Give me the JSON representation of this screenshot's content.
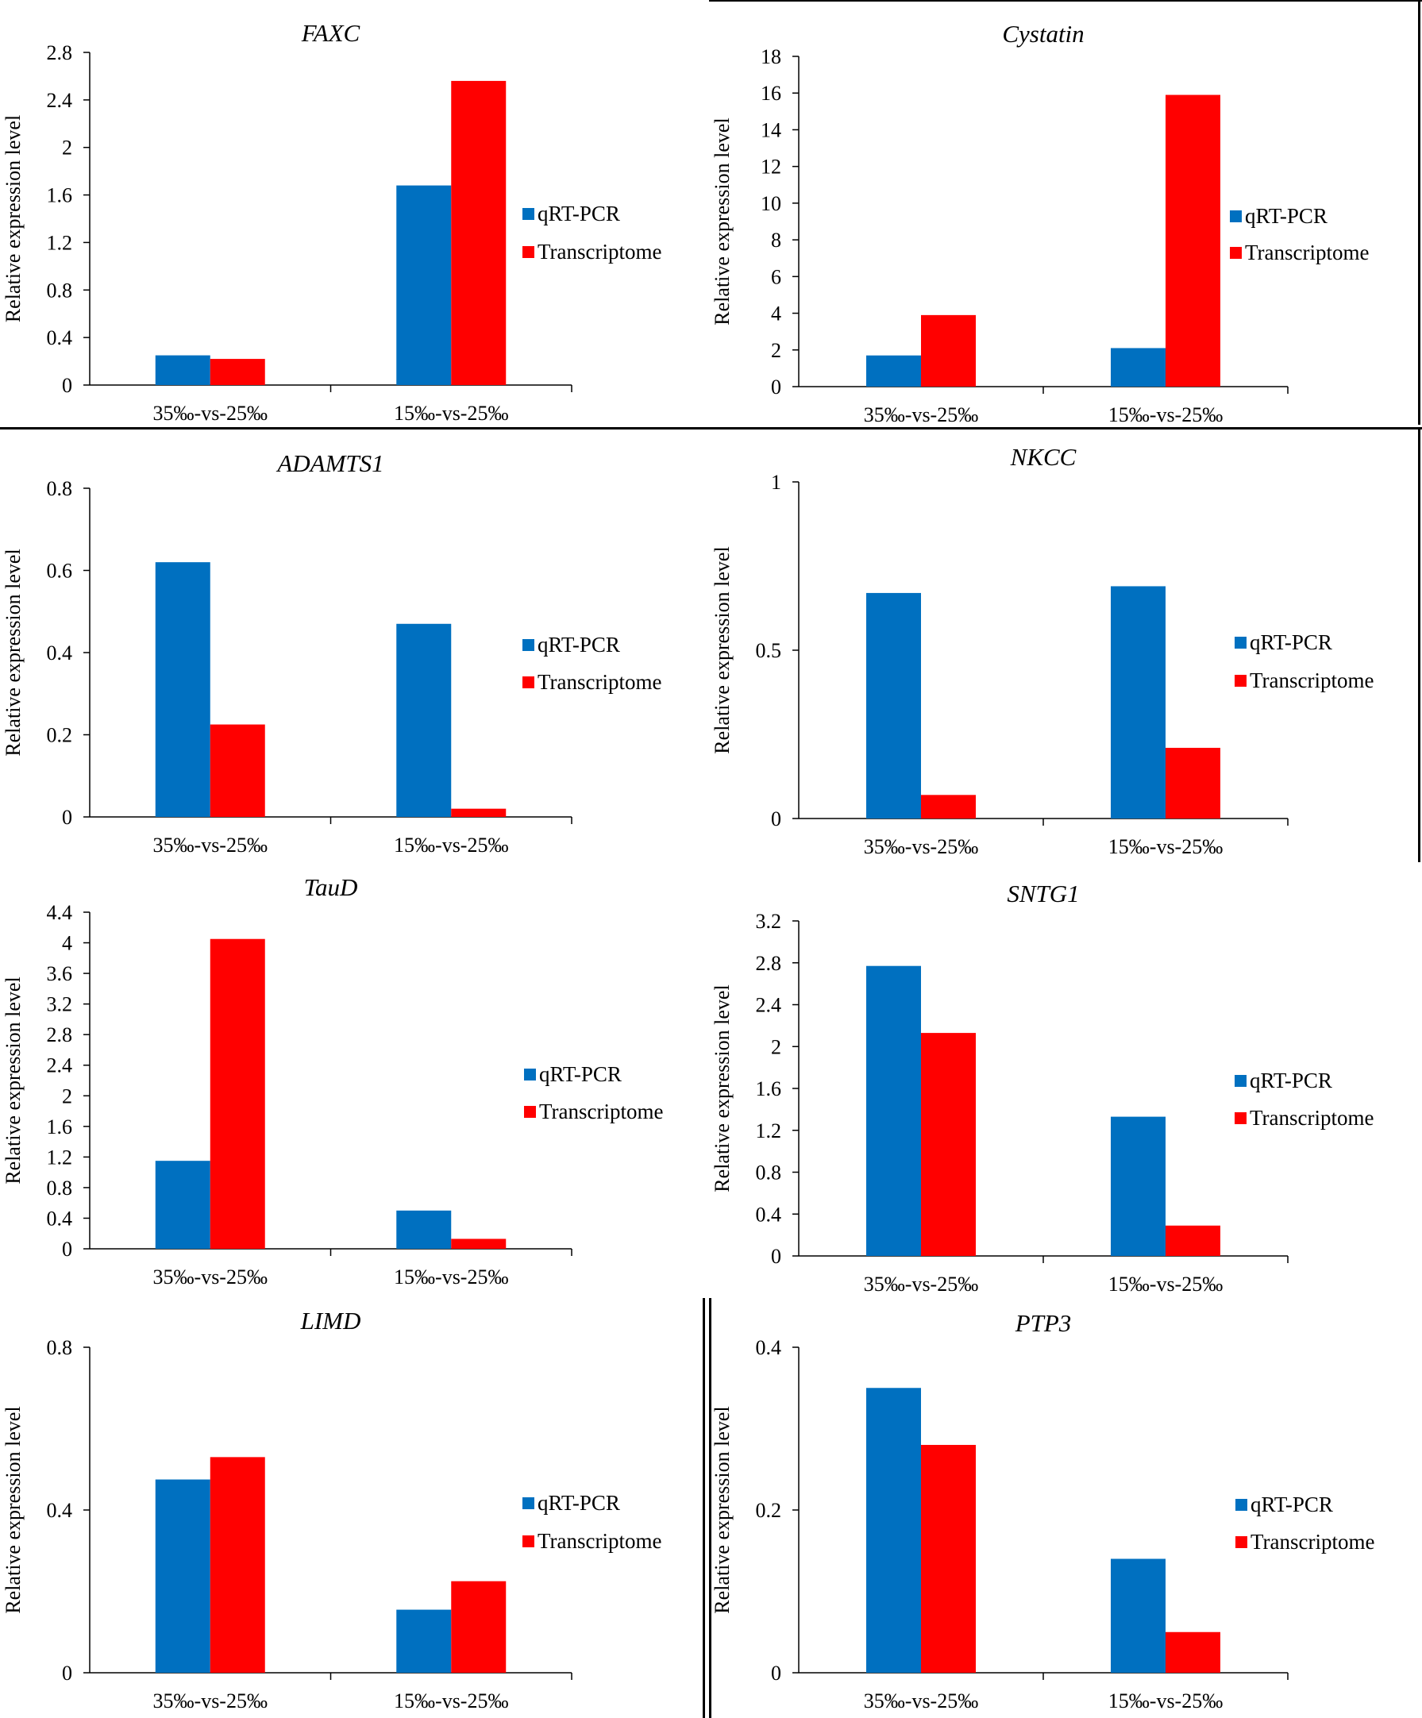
{
  "colors": {
    "qrt_pcr": "#0070C0",
    "transcriptome": "#FF0000",
    "axis": "#000000"
  },
  "legend_labels": [
    "qRT-PCR",
    "Transcriptome"
  ],
  "chart_data": [
    {
      "type": "bar",
      "title": "FAXC",
      "title_style": "italic",
      "categories": [
        "35‰-vs-25‰",
        "15‰-vs-25‰"
      ],
      "series": [
        {
          "name": "qRT-PCR",
          "values": [
            0.25,
            1.68
          ]
        },
        {
          "name": "Transcriptome",
          "values": [
            0.22,
            2.56
          ]
        }
      ],
      "ylabel": "Relative expression level",
      "xlabel": "",
      "ylim": [
        0,
        2.8
      ],
      "yticks": [
        0,
        0.4,
        0.8,
        1.2,
        1.6,
        2,
        2.4,
        2.8
      ],
      "legend": "right",
      "grid": false
    },
    {
      "type": "bar",
      "title": "Cystatin",
      "title_style": "italic",
      "categories": [
        "35‰-vs-25‰",
        "15‰-vs-25‰"
      ],
      "series": [
        {
          "name": "qRT-PCR",
          "values": [
            1.7,
            2.1
          ]
        },
        {
          "name": "Transcriptome",
          "values": [
            3.9,
            15.9
          ]
        }
      ],
      "ylabel": "Relative expression level",
      "xlabel": "",
      "ylim": [
        0,
        18
      ],
      "yticks": [
        0,
        2,
        4,
        6,
        8,
        10,
        12,
        14,
        16,
        18
      ],
      "legend": "right",
      "grid": false
    },
    {
      "type": "bar",
      "title": "ADAMTS1",
      "title_style": "italic",
      "categories": [
        "35‰-vs-25‰",
        "15‰-vs-25‰"
      ],
      "series": [
        {
          "name": "qRT-PCR",
          "values": [
            0.62,
            0.47
          ]
        },
        {
          "name": "Transcriptome",
          "values": [
            0.225,
            0.02
          ]
        }
      ],
      "ylabel": "Relative expression level",
      "xlabel": "",
      "ylim": [
        0,
        0.8
      ],
      "yticks": [
        0,
        0.2,
        0.4,
        0.6,
        0.8
      ],
      "legend": "right",
      "grid": false
    },
    {
      "type": "bar",
      "title": "NKCC",
      "title_style": "italic",
      "categories": [
        "35‰-vs-25‰",
        "15‰-vs-25‰"
      ],
      "series": [
        {
          "name": "qRT-PCR",
          "values": [
            0.67,
            0.69
          ]
        },
        {
          "name": "Transcriptome",
          "values": [
            0.07,
            0.21
          ]
        }
      ],
      "ylabel": "Relative expression level",
      "xlabel": "",
      "ylim": [
        0,
        1
      ],
      "yticks": [
        0,
        0.5,
        1
      ],
      "legend": "right",
      "grid": false
    },
    {
      "type": "bar",
      "title": "TauD",
      "title_style": "italic",
      "categories": [
        "35‰-vs-25‰",
        "15‰-vs-25‰"
      ],
      "series": [
        {
          "name": "qRT-PCR",
          "values": [
            1.15,
            0.5
          ]
        },
        {
          "name": "Transcriptome",
          "values": [
            4.05,
            0.13
          ]
        }
      ],
      "ylabel": "Relative expression level",
      "xlabel": "",
      "ylim": [
        0,
        4.4
      ],
      "yticks": [
        0,
        0.4,
        0.8,
        1.2,
        1.6,
        2,
        2.4,
        2.8,
        3.2,
        3.6,
        4,
        4.4
      ],
      "legend": "right",
      "grid": false
    },
    {
      "type": "bar",
      "title": "SNTG1",
      "title_style": "italic",
      "categories": [
        "35‰-vs-25‰",
        "15‰-vs-25‰"
      ],
      "series": [
        {
          "name": "qRT-PCR",
          "values": [
            2.77,
            1.33
          ]
        },
        {
          "name": "Transcriptome",
          "values": [
            2.13,
            0.29
          ]
        }
      ],
      "ylabel": "Relative expression level",
      "xlabel": "",
      "ylim": [
        0,
        3.2
      ],
      "yticks": [
        0,
        0.4,
        0.8,
        1.2,
        1.6,
        2,
        2.4,
        2.8,
        3.2
      ],
      "legend": "right",
      "grid": false
    },
    {
      "type": "bar",
      "title": "LIMD",
      "title_style": "italic",
      "categories": [
        "35‰-vs-25‰",
        "15‰-vs-25‰"
      ],
      "series": [
        {
          "name": "qRT-PCR",
          "values": [
            0.475,
            0.155
          ]
        },
        {
          "name": "Transcriptome",
          "values": [
            0.53,
            0.225
          ]
        }
      ],
      "ylabel": "Relative expression level",
      "xlabel": "",
      "ylim": [
        0,
        0.8
      ],
      "yticks": [
        0,
        0.4,
        0.8
      ],
      "legend": "right",
      "grid": false
    },
    {
      "type": "bar",
      "title": "PTP3",
      "title_style": "italic",
      "categories": [
        "35‰-vs-25‰",
        "15‰-vs-25‰"
      ],
      "series": [
        {
          "name": "qRT-PCR",
          "values": [
            0.35,
            0.14
          ]
        },
        {
          "name": "Transcriptome",
          "values": [
            0.28,
            0.05
          ]
        }
      ],
      "ylabel": "Relative expression level",
      "xlabel": "",
      "ylim": [
        0,
        0.4
      ],
      "yticks": [
        0,
        0.2,
        0.4
      ],
      "legend": "right",
      "grid": false
    }
  ]
}
